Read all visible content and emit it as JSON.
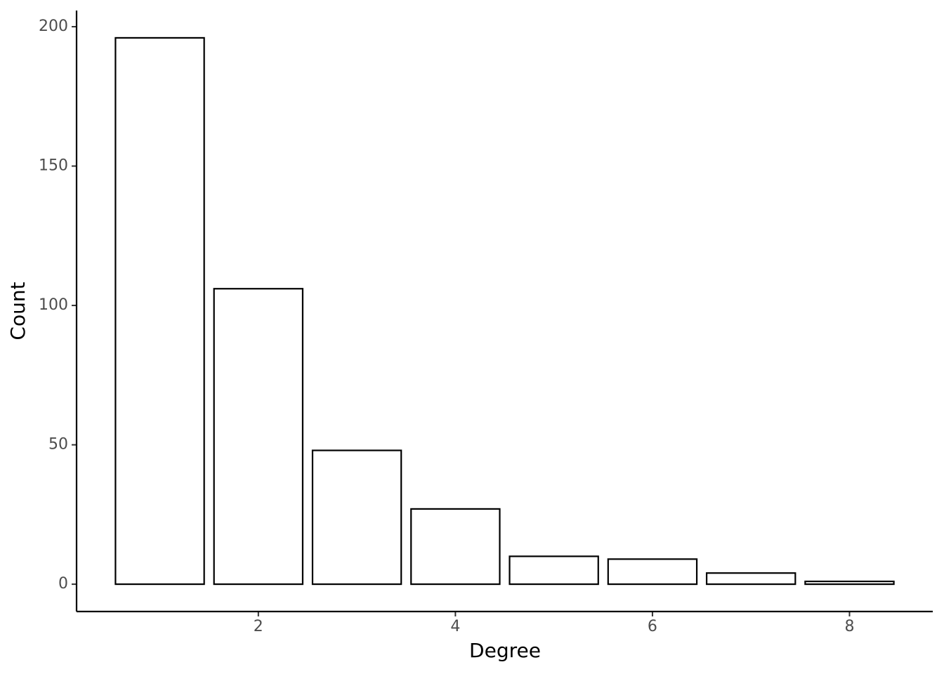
{
  "chart_data": {
    "type": "bar",
    "x_label": "Degree",
    "y_label": "Count",
    "x": [
      1,
      2,
      3,
      4,
      5,
      6,
      7,
      8
    ],
    "values": [
      196,
      106,
      48,
      27,
      10,
      9,
      4,
      1
    ],
    "bar_width": 0.9,
    "color": "#ffffff",
    "edgecolor": "#000000",
    "xlim": [
      0.155,
      8.845
    ],
    "xticks": [
      2,
      4,
      6,
      8
    ],
    "ylim": [
      -9.8,
      205.8
    ],
    "yticks": [
      0,
      50,
      100,
      150,
      200
    ],
    "grid": false
  }
}
